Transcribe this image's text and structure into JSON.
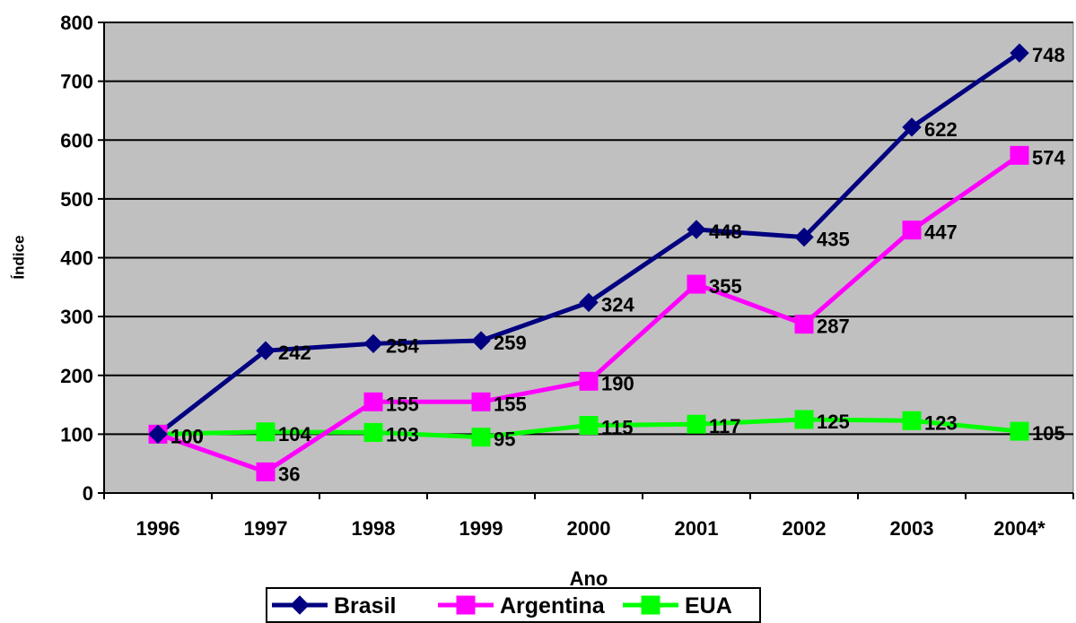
{
  "chart_data": {
    "type": "line",
    "title": "",
    "xlabel": "Ano",
    "ylabel": "Índice",
    "categories": [
      "1996",
      "1997",
      "1998",
      "1999",
      "2000",
      "2001",
      "2002",
      "2003",
      "2004*"
    ],
    "ylim": [
      0,
      800
    ],
    "yticks": [
      "0",
      "100",
      "200",
      "300",
      "400",
      "500",
      "600",
      "700",
      "800"
    ],
    "grid": true,
    "legend_position": "bottom",
    "plot_background": "#c0c0c0",
    "series": [
      {
        "name": "Brasil",
        "color": "#000080",
        "marker": "diamond",
        "values": [
          100,
          242,
          254,
          259,
          324,
          448,
          435,
          622,
          748
        ],
        "labels": [
          "100",
          "242",
          "254",
          "259",
          "324",
          "448",
          "435",
          "622",
          "748"
        ]
      },
      {
        "name": "Argentina",
        "color": "#ff00ff",
        "marker": "square",
        "values": [
          100,
          36,
          155,
          155,
          190,
          355,
          287,
          447,
          574
        ],
        "labels": [
          "100",
          "36",
          "155",
          "155",
          "190",
          "355",
          "287",
          "447",
          "574"
        ]
      },
      {
        "name": "EUA",
        "color": "#00ff00",
        "marker": "square",
        "values": [
          100,
          104,
          103,
          95,
          115,
          117,
          125,
          123,
          105
        ],
        "labels": [
          "100",
          "104",
          "103",
          "95",
          "115",
          "117",
          "125",
          "123",
          "105"
        ]
      }
    ]
  }
}
